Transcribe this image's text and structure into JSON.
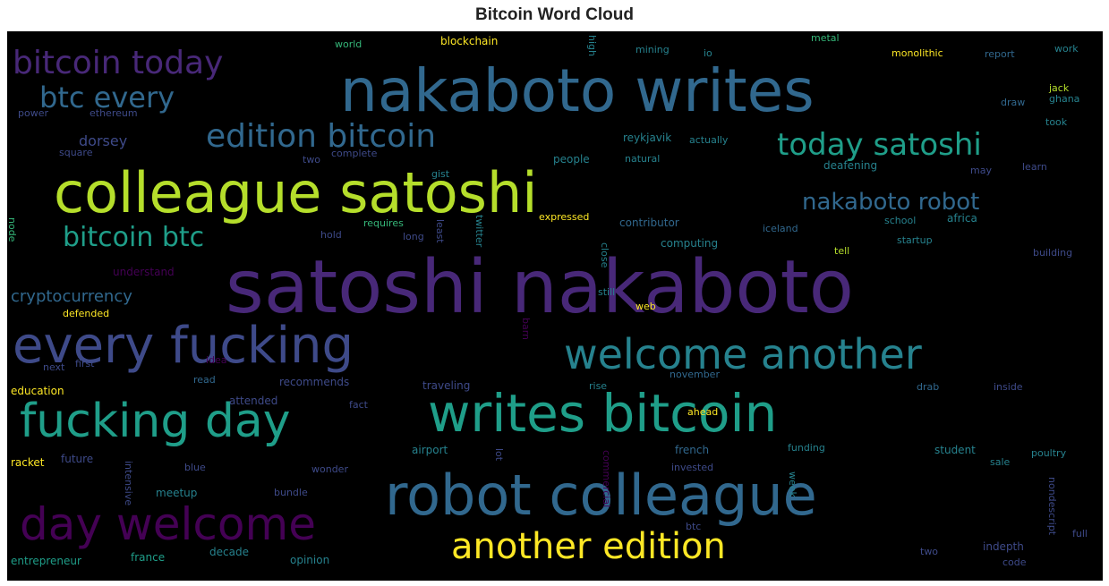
{
  "title": "Bitcoin Word Cloud",
  "palette": {
    "purple": "#440154",
    "indigo": "#482878",
    "slate": "#3e4a89",
    "blue": "#31688e",
    "steel": "#26828e",
    "teal": "#1f9e89",
    "green": "#35b779",
    "lime": "#b5de2b",
    "yellow": "#fde725",
    "background": "#000000"
  },
  "words": {
    "satoshi_nakaboto": "satoshi nakaboto",
    "nakaboto_writes": "nakaboto writes",
    "colleague_satoshi": "colleague satoshi",
    "writes_bitcoin": "writes bitcoin",
    "robot_colleague": "robot colleague",
    "every_fucking": "every fucking",
    "welcome_another": "welcome another",
    "fucking_day": "fucking day",
    "day_welcome": "day welcome",
    "another_edition": "another edition",
    "edition_bitcoin": "edition bitcoin",
    "bitcoin_today": "bitcoin today",
    "today_satoshi": "today satoshi",
    "btc_every": "btc every",
    "bitcoin_btc": "bitcoin btc",
    "nakaboto_robot": "nakaboto robot",
    "cryptocurrency": "cryptocurrency",
    "dorsey": "dorsey",
    "world": "world",
    "blockchain": "blockchain",
    "high": "high",
    "mining": "mining",
    "metal": "metal",
    "monolithic": "monolithic",
    "report": "report",
    "work": "work",
    "jack": "jack",
    "draw": "draw",
    "ghana": "ghana",
    "took": "took",
    "ethereum": "ethereum",
    "power": "power",
    "square": "square",
    "complete": "complete",
    "people": "people",
    "reykjavik": "reykjavik",
    "actually": "actually",
    "natural": "natural",
    "deafening": "deafening",
    "learn": "learn",
    "may": "may",
    "gist": "gist",
    "expressed": "expressed",
    "contributor": "contributor",
    "school": "school",
    "africa": "africa",
    "requires": "requires",
    "hold": "hold",
    "long": "long",
    "least": "least",
    "twitter": "twitter",
    "iceland": "iceland",
    "computing": "computing",
    "tell": "tell",
    "startup": "startup",
    "building": "building",
    "close": "close",
    "still": "still",
    "understand": "understand",
    "defended": "defended",
    "web": "web",
    "barn": "barn",
    "next": "next",
    "first": "first",
    "idea": "idea",
    "education": "education",
    "read": "read",
    "recommends": "recommends",
    "traveling": "traveling",
    "rise": "rise",
    "november": "november",
    "drab": "drab",
    "inside": "inside",
    "attended": "attended",
    "fact": "fact",
    "ahead": "ahead",
    "racket": "racket",
    "future": "future",
    "blue": "blue",
    "intensive": "intensive",
    "wonder": "wonder",
    "airport": "airport",
    "lot": "lot",
    "french": "french",
    "funding": "funding",
    "invested": "invested",
    "student": "student",
    "poultry": "poultry",
    "sale": "sale",
    "meetup": "meetup",
    "bundle": "bundle",
    "commercial": "commercial",
    "week": "week",
    "btc": "btc",
    "nondescript": "nondescript",
    "full": "full",
    "indepth": "indepth",
    "entrepreneur": "entrepreneur",
    "france": "france",
    "decade": "decade",
    "opinion": "opinion",
    "code": "code",
    "two": "two",
    "node": "node",
    "io": "io"
  }
}
